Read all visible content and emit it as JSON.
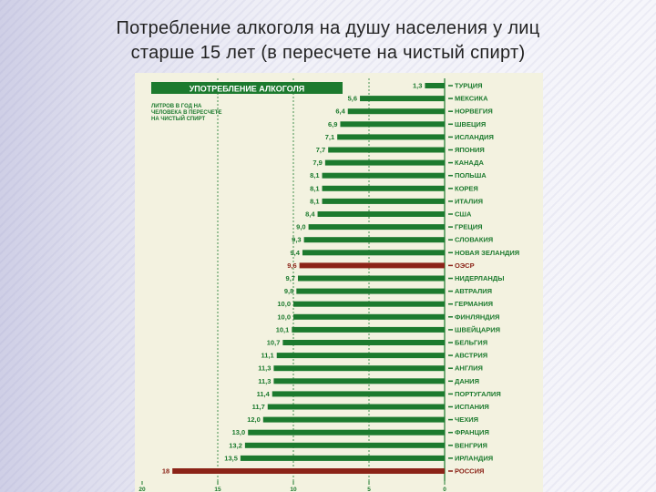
{
  "slide": {
    "title_line1": "Потребление алкоголя на душу населения у лиц",
    "title_line2": "старше 15 лет (в пересчете на чистый спирт)"
  },
  "colors": {
    "bar": "#1c7a2e",
    "highlight": "#8b2317",
    "header_bg": "#1c7a2e",
    "panel_bg": "#f3f2e0",
    "text": "#1c7a2e",
    "highlight_text": "#8b2317"
  },
  "chart_data": {
    "type": "bar",
    "orientation": "horizontal",
    "direction": "right-to-left",
    "header": "УПОТРЕБЛЕНИЕ АЛКОГОЛЯ",
    "note": "ЛИТРОВ В ГОД НА ЧЕЛОВЕКА В ПЕРЕСЧЕТЕ НА ЧИСТЫЙ СПИРТ",
    "categories": [
      "ТУРЦИЯ",
      "МЕКСИКА",
      "НОРВЕГИЯ",
      "ШВЕЦИЯ",
      "ИСЛАНДИЯ",
      "ЯПОНИЯ",
      "КАНАДА",
      "ПОЛЬША",
      "КОРЕЯ",
      "ИТАЛИЯ",
      "США",
      "ГРЕЦИЯ",
      "СЛОВАКИЯ",
      "НОВАЯ ЗЕЛАНДИЯ",
      "ОЭСР",
      "НИДЕРЛАНДЫ",
      "АВТРАЛИЯ",
      "ГЕРМАНИЯ",
      "ФИНЛЯНДИЯ",
      "ШВЕЙЦАРИЯ",
      "БЕЛЬГИЯ",
      "АВСТРИЯ",
      "АНГЛИЯ",
      "ДАНИЯ",
      "ПОРТУГАЛИЯ",
      "ИСПАНИЯ",
      "ЧЕХИЯ",
      "ФРАНЦИЯ",
      "ВЕНГРИЯ",
      "ИРЛАНДИЯ",
      "РОССИЯ"
    ],
    "values": [
      1.3,
      5.6,
      6.4,
      6.9,
      7.1,
      7.7,
      7.9,
      8.1,
      8.1,
      8.1,
      8.4,
      9.0,
      9.3,
      9.4,
      9.6,
      9.7,
      9.8,
      10.0,
      10.0,
      10.1,
      10.7,
      11.1,
      11.3,
      11.3,
      11.4,
      11.7,
      12.0,
      13.0,
      13.2,
      13.5,
      18
    ],
    "value_labels": [
      "1,3",
      "5,6",
      "6,4",
      "6,9",
      "7,1",
      "7,7",
      "7,9",
      "8,1",
      "8,1",
      "8,1",
      "8,4",
      "9,0",
      "9,3",
      "9,4",
      "9,6",
      "9,7",
      "9,8",
      "10,0",
      "10,0",
      "10,1",
      "10,7",
      "11,1",
      "11,3",
      "11,3",
      "11,4",
      "11,7",
      "12,0",
      "13,0",
      "13,2",
      "13,5",
      "18"
    ],
    "highlighted": [
      "ОЭСР",
      "РОССИЯ"
    ],
    "xlim": [
      0,
      20
    ],
    "x_ticks": [
      "20",
      "15",
      "10",
      "5",
      "0"
    ],
    "tick_values": [
      20,
      15,
      10,
      5,
      0
    ],
    "grid": true
  }
}
